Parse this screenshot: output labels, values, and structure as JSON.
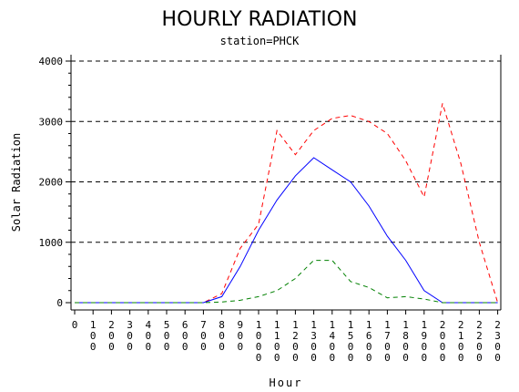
{
  "chart_data": {
    "type": "line",
    "title": "HOURLY RADIATION",
    "subtitle": "station=PHCK",
    "xlabel": "Hour",
    "ylabel": "Solar Radiation",
    "ylim": [
      0,
      4000
    ],
    "yticks": [
      0,
      1000,
      2000,
      3000,
      4000
    ],
    "y_minor_step": 200,
    "x": [
      0,
      100,
      200,
      300,
      400,
      500,
      600,
      700,
      800,
      900,
      1000,
      1100,
      1200,
      1300,
      1400,
      1500,
      1600,
      1700,
      1800,
      1900,
      2000,
      2100,
      2200,
      2300
    ],
    "grid": "dashed horizontal at major y ticks",
    "series": [
      {
        "color": "#ff0000",
        "dash": "dashed",
        "values": [
          0,
          0,
          0,
          0,
          0,
          0,
          0,
          0,
          150,
          900,
          1300,
          2850,
          2450,
          2850,
          3050,
          3100,
          3000,
          2800,
          2350,
          1750,
          3300,
          2300,
          1000,
          0
        ]
      },
      {
        "color": "#0000ff",
        "dash": "solid",
        "values": [
          0,
          0,
          0,
          0,
          0,
          0,
          0,
          0,
          100,
          600,
          1200,
          1700,
          2100,
          2400,
          2200,
          2000,
          1600,
          1100,
          700,
          200,
          0,
          0,
          0,
          0
        ]
      },
      {
        "color": "#008000",
        "dash": "dashed",
        "values": [
          0,
          0,
          0,
          0,
          0,
          0,
          0,
          0,
          10,
          40,
          100,
          200,
          400,
          700,
          700,
          350,
          250,
          80,
          100,
          60,
          0,
          0,
          0,
          0
        ]
      }
    ]
  }
}
